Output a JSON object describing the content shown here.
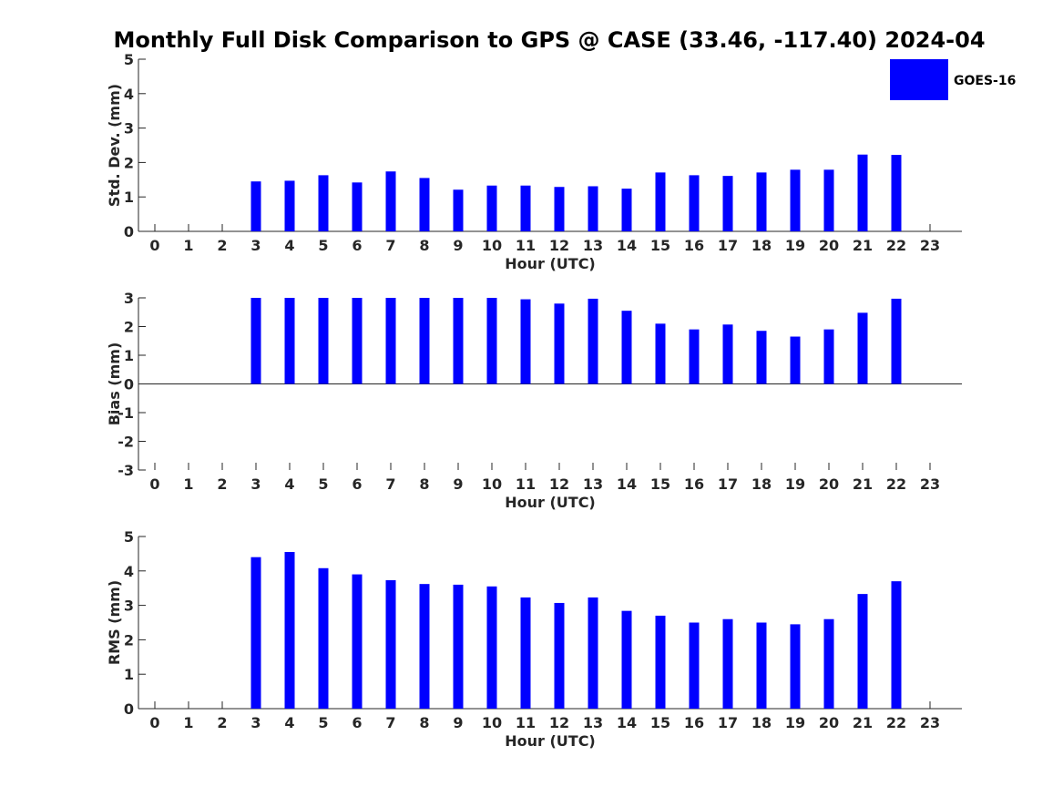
{
  "title": "Monthly Full Disk Comparison to GPS @ CASE (33.46, -117.40) 2024-04",
  "legend": {
    "label": "GOES-16",
    "color": "#0000ff",
    "placement": "top-right"
  },
  "colors": {
    "bar": "#0000ff",
    "axis": "#262626"
  },
  "chart_data": [
    {
      "type": "bar",
      "xlabel": "Hour (UTC)",
      "ylabel": "Std. Dev. (mm)",
      "ylim": [
        0,
        5
      ],
      "yticks": [
        0,
        1,
        2,
        3,
        4,
        5
      ],
      "categories": [
        "0",
        "1",
        "2",
        "3",
        "4",
        "5",
        "6",
        "7",
        "8",
        "9",
        "10",
        "11",
        "12",
        "13",
        "14",
        "15",
        "16",
        "17",
        "18",
        "19",
        "20",
        "21",
        "22",
        "23"
      ],
      "series": [
        {
          "name": "GOES-16",
          "values": [
            null,
            null,
            null,
            1.45,
            1.47,
            1.63,
            1.42,
            1.74,
            1.55,
            1.21,
            1.33,
            1.33,
            1.29,
            1.31,
            1.24,
            1.71,
            1.63,
            1.61,
            1.71,
            1.79,
            1.79,
            2.23,
            2.22,
            null
          ]
        }
      ]
    },
    {
      "type": "bar",
      "xlabel": "Hour (UTC)",
      "ylabel": "Bias (mm)",
      "ylim": [
        -3,
        3
      ],
      "yticks": [
        -3,
        -2,
        -1,
        0,
        1,
        2,
        3
      ],
      "categories": [
        "0",
        "1",
        "2",
        "3",
        "4",
        "5",
        "6",
        "7",
        "8",
        "9",
        "10",
        "11",
        "12",
        "13",
        "14",
        "15",
        "16",
        "17",
        "18",
        "19",
        "20",
        "21",
        "22",
        "23"
      ],
      "series": [
        {
          "name": "GOES-16",
          "values": [
            null,
            null,
            null,
            3.0,
            3.0,
            3.0,
            3.0,
            3.0,
            3.0,
            3.0,
            3.0,
            2.95,
            2.8,
            2.97,
            2.55,
            2.1,
            1.9,
            2.07,
            1.85,
            1.65,
            1.9,
            2.48,
            2.97,
            null
          ]
        }
      ]
    },
    {
      "type": "bar",
      "xlabel": "Hour (UTC)",
      "ylabel": "RMS (mm)",
      "ylim": [
        0,
        5
      ],
      "yticks": [
        0,
        1,
        2,
        3,
        4,
        5
      ],
      "categories": [
        "0",
        "1",
        "2",
        "3",
        "4",
        "5",
        "6",
        "7",
        "8",
        "9",
        "10",
        "11",
        "12",
        "13",
        "14",
        "15",
        "16",
        "17",
        "18",
        "19",
        "20",
        "21",
        "22",
        "23"
      ],
      "series": [
        {
          "name": "GOES-16",
          "values": [
            null,
            null,
            null,
            4.4,
            4.55,
            4.08,
            3.9,
            3.73,
            3.62,
            3.6,
            3.55,
            3.23,
            3.07,
            3.23,
            2.84,
            2.7,
            2.5,
            2.6,
            2.5,
            2.45,
            2.6,
            3.33,
            3.7,
            null
          ]
        }
      ]
    }
  ]
}
